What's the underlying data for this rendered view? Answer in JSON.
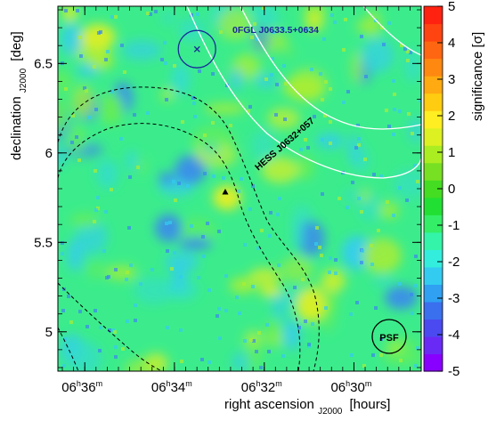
{
  "chart_data": {
    "type": "heatmap",
    "title": "",
    "xlabel": {
      "text": "right ascension",
      "subscript": "J2000",
      "unit": "[hours]"
    },
    "ylabel": {
      "text": "declination",
      "subscript": "J2000",
      "unit": "[deg]"
    },
    "colorbar_label": "significance [σ]",
    "xlim_hours": [
      6.61,
      6.475
    ],
    "ylim_deg": [
      4.78,
      6.82
    ],
    "x_ticks": [
      {
        "value": 6.6,
        "hours": "06",
        "minutes": "36"
      },
      {
        "value": 6.5667,
        "hours": "06",
        "minutes": "34"
      },
      {
        "value": 6.5333,
        "hours": "06",
        "minutes": "32"
      },
      {
        "value": 6.5,
        "hours": "06",
        "minutes": "30"
      }
    ],
    "y_ticks": [
      {
        "value": 5.0,
        "label": "5"
      },
      {
        "value": 5.5,
        "label": "5.5"
      },
      {
        "value": 6.0,
        "label": "6"
      },
      {
        "value": 6.5,
        "label": "6.5"
      }
    ],
    "colorbar_range": [
      -5,
      5
    ],
    "colorbar_ticks": [
      "-5",
      "-4",
      "-3",
      "-2",
      "-1",
      "0",
      "1",
      "2",
      "3",
      "4",
      "5"
    ],
    "colorbar_colors": [
      "#8800ff",
      "#6a2af5",
      "#4a4af0",
      "#3a70ee",
      "#2fa0f2",
      "#33ccf0",
      "#33eedd",
      "#33f4a8",
      "#33ee66",
      "#22e033",
      "#44dd22",
      "#77e022",
      "#aaee22",
      "#ddf022",
      "#ffee22",
      "#ffcc11",
      "#ffaa11",
      "#ff8811",
      "#ff6611",
      "#ff4411",
      "#ff2211"
    ],
    "map_colors": {
      "background": "#3cec8c",
      "high": [
        "#66ee55",
        "#aaee33",
        "#ddef22"
      ],
      "low": [
        "#33ddcc",
        "#33ccf0",
        "#3a88ee"
      ]
    },
    "annotations": {
      "fermi_source": {
        "label": "0FGL J0633.5+0634",
        "ra": 6.5583,
        "dec": 6.58
      },
      "hess_source": {
        "label": "HESS J0632+057",
        "ra": 6.5478,
        "dec": 5.78
      },
      "psf_label": "PSF"
    }
  }
}
